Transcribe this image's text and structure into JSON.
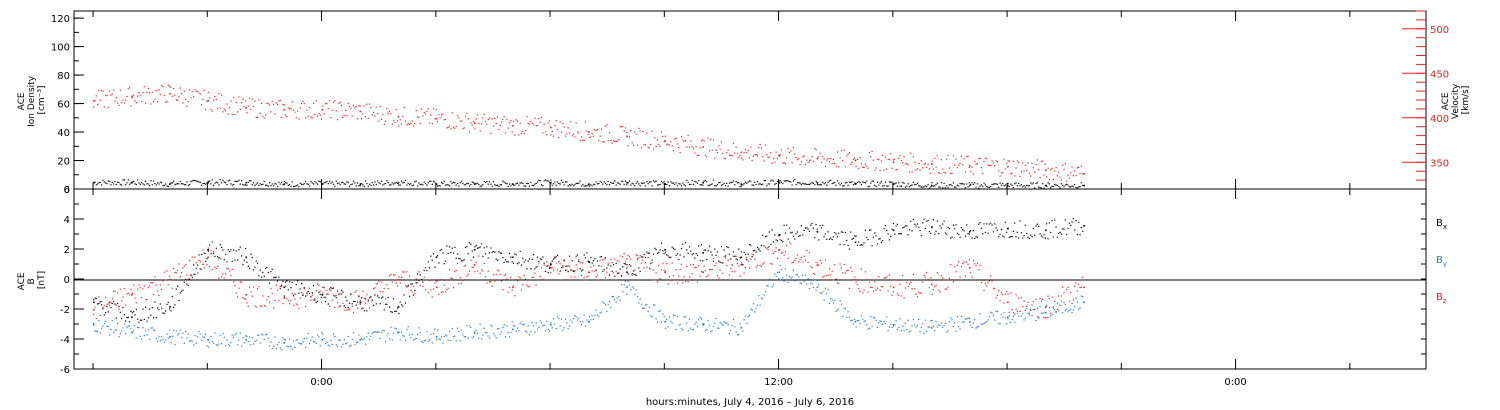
{
  "chart_data": [
    {
      "type": "scatter",
      "panel": "top",
      "ylabel_lines": [
        "ACE",
        "Ion Density",
        "[cm⁻³]"
      ],
      "y2label_lines": [
        "ACE",
        "Velocity",
        "[km/s]"
      ],
      "ylim": [
        0,
        125
      ],
      "yticks": [
        0,
        20,
        40,
        60,
        80,
        100,
        120
      ],
      "y2lim": [
        320,
        520
      ],
      "y2ticks": [
        350,
        400,
        450,
        500
      ],
      "xlim_hours": [
        -6.5,
        29.0
      ],
      "series": [
        {
          "name": "Ion Density",
          "color": "#000000",
          "axis": "left",
          "x": [
            -6.0,
            -5.0,
            -4.0,
            -3.0,
            -2.0,
            -1.0,
            0.0,
            1.0,
            2.0,
            3.0,
            4.0,
            5.0,
            6.0,
            7.0,
            8.0,
            9.0,
            10.0,
            11.0,
            12.0,
            13.0,
            14.0,
            15.0,
            16.0,
            17.0,
            18.0,
            19.0,
            20.0
          ],
          "y": [
            5,
            5,
            4,
            5,
            5,
            4,
            4,
            4,
            5,
            4,
            4,
            4,
            5,
            4,
            5,
            4,
            5,
            4,
            5,
            5,
            4,
            4,
            3,
            3,
            3,
            3,
            3
          ]
        },
        {
          "name": "Velocity",
          "color": "#e8221c",
          "axis": "right",
          "x": [
            -6.0,
            -5.0,
            -4.0,
            -3.0,
            -2.0,
            -1.0,
            0.0,
            1.0,
            2.0,
            3.0,
            4.0,
            5.0,
            6.0,
            7.0,
            8.0,
            9.0,
            10.0,
            11.0,
            12.0,
            13.0,
            14.0,
            15.0,
            16.0,
            17.0,
            18.0,
            19.0,
            20.0
          ],
          "y": [
            420,
            425,
            428,
            420,
            412,
            410,
            410,
            408,
            402,
            400,
            395,
            392,
            390,
            385,
            380,
            375,
            368,
            362,
            358,
            355,
            353,
            351,
            349,
            347,
            346,
            342,
            338
          ]
        }
      ]
    },
    {
      "type": "scatter",
      "panel": "bottom",
      "ylabel_lines": [
        "ACE",
        "B",
        "[nT]"
      ],
      "ylim": [
        -6,
        6
      ],
      "yticks": [
        -6,
        -4,
        -2,
        0,
        2,
        4,
        6
      ],
      "xlim_hours": [
        -6.5,
        29.0
      ],
      "xticks_hours": [
        0,
        12,
        24
      ],
      "xtick_labels": [
        "0:00",
        "12:00",
        "0:00"
      ],
      "xlabel": "hours:minutes,  July  4, 2016 – July  6, 2016",
      "series": [
        {
          "name": "Bx",
          "legend_main": "B",
          "legend_sub": "x",
          "color": "#000000",
          "x": [
            -6.0,
            -5.0,
            -4.0,
            -3.0,
            -2.0,
            -1.0,
            0.0,
            1.0,
            2.0,
            3.0,
            4.0,
            5.0,
            6.0,
            7.0,
            8.0,
            9.0,
            10.0,
            11.0,
            12.0,
            13.0,
            14.0,
            15.0,
            16.0,
            17.0,
            18.0,
            19.0,
            20.0
          ],
          "y": [
            -1.5,
            -2.5,
            -1.8,
            2.0,
            1.5,
            -0.5,
            -1.0,
            -1.5,
            -1.8,
            1.5,
            2.0,
            1.5,
            1.0,
            1.2,
            0.5,
            2.0,
            1.8,
            1.5,
            3.0,
            3.2,
            2.5,
            3.3,
            3.5,
            3.2,
            3.4,
            3.3,
            3.6
          ]
        },
        {
          "name": "By",
          "legend_main": "B",
          "legend_sub": "y",
          "color": "#1e7fd0",
          "x": [
            -6.0,
            -5.0,
            -4.0,
            -3.0,
            -2.0,
            -1.0,
            0.0,
            1.0,
            2.0,
            3.0,
            4.0,
            5.0,
            6.0,
            7.0,
            8.0,
            9.0,
            10.0,
            11.0,
            12.0,
            13.0,
            14.0,
            15.0,
            16.0,
            17.0,
            18.0,
            19.0,
            20.0
          ],
          "y": [
            -3.0,
            -3.5,
            -3.8,
            -4.0,
            -4.0,
            -4.2,
            -4.0,
            -4.0,
            -3.5,
            -3.8,
            -3.5,
            -3.3,
            -3.0,
            -2.8,
            -0.5,
            -2.8,
            -3.0,
            -3.2,
            0.5,
            -0.5,
            -2.8,
            -3.0,
            -3.2,
            -2.8,
            -2.5,
            -2.2,
            -1.5
          ]
        },
        {
          "name": "Bz",
          "legend_main": "B",
          "legend_sub": "z",
          "color": "#e8221c",
          "x": [
            -6.0,
            -5.0,
            -4.0,
            -3.0,
            -2.0,
            -1.0,
            0.0,
            1.0,
            2.0,
            3.0,
            4.0,
            5.0,
            6.0,
            7.0,
            8.0,
            9.0,
            10.0,
            11.0,
            12.0,
            13.0,
            14.0,
            15.0,
            16.0,
            17.0,
            18.0,
            19.0,
            20.0
          ],
          "y": [
            -2.0,
            -1.0,
            0.0,
            1.5,
            -1.0,
            -1.2,
            -1.0,
            -1.5,
            0.0,
            -0.5,
            1.0,
            -0.5,
            0.8,
            0.5,
            1.0,
            0.5,
            0.5,
            1.0,
            2.0,
            1.0,
            0.0,
            -0.5,
            -0.3,
            0.8,
            -1.5,
            -1.8,
            -0.5
          ]
        }
      ]
    }
  ]
}
